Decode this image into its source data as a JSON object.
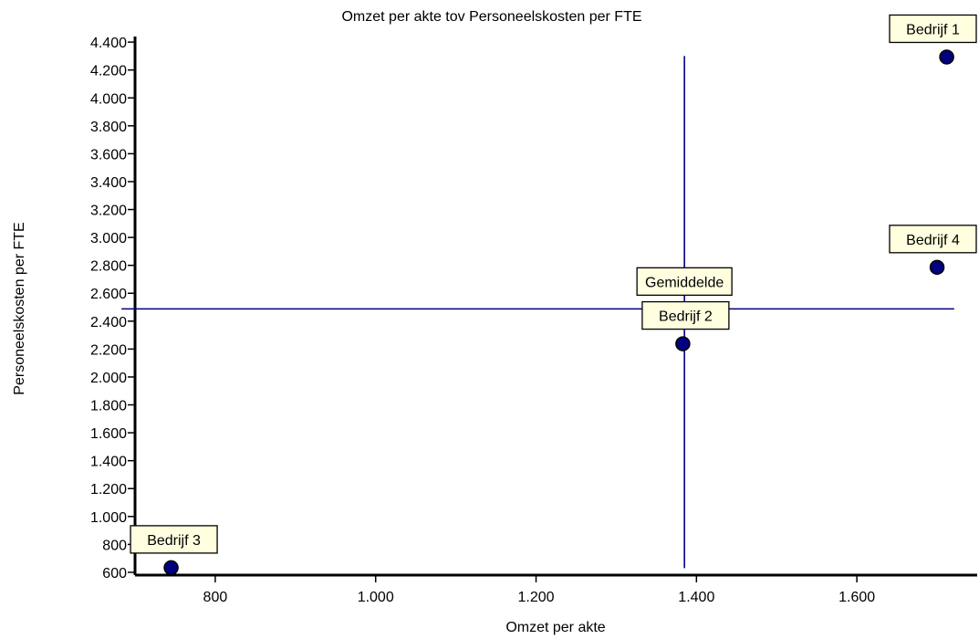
{
  "chart_data": {
    "type": "scatter",
    "title": "Omzet per akte tov Personeelskosten per FTE",
    "xlabel": "Omzet per akte",
    "ylabel": "Personeelskosten per FTE",
    "xlim": [
      700,
      1750
    ],
    "ylim": [
      580,
      4440
    ],
    "x_ticks": [
      800,
      1000,
      1200,
      1400,
      1600
    ],
    "x_tick_labels": [
      "800",
      "1.000",
      "1.200",
      "1.400",
      "1.600"
    ],
    "y_ticks": [
      600,
      800,
      1000,
      1200,
      1400,
      1600,
      1800,
      2000,
      2200,
      2400,
      2600,
      2800,
      3000,
      3200,
      3400,
      3600,
      3800,
      4000,
      4200,
      4400
    ],
    "y_tick_labels": [
      "600",
      "800",
      "1.000",
      "1.200",
      "1.400",
      "1.600",
      "1.800",
      "2.000",
      "2.200",
      "2.400",
      "2.600",
      "2.800",
      "3.000",
      "3.200",
      "3.400",
      "3.600",
      "3.800",
      "4.000",
      "4.200",
      "4.400"
    ],
    "points": [
      {
        "label": "Bedrijf 1",
        "x": 1712,
        "y": 4293
      },
      {
        "label": "Bedrijf 2",
        "x": 1383,
        "y": 2238
      },
      {
        "label": "Bedrijf 3",
        "x": 745,
        "y": 633
      },
      {
        "label": "Bedrijf 4",
        "x": 1700,
        "y": 2786
      }
    ],
    "average": {
      "label": "Gemiddelde",
      "x": 1385,
      "y": 2488
    },
    "average_lines": {
      "x_range": [
        740,
        1710
      ],
      "y_range": [
        630,
        4300
      ]
    },
    "grid": false,
    "legend": "none",
    "colors": {
      "marker": "#000080",
      "average_line": "#000080",
      "label_fill": "#ffffe0",
      "axis": "#000000"
    }
  }
}
